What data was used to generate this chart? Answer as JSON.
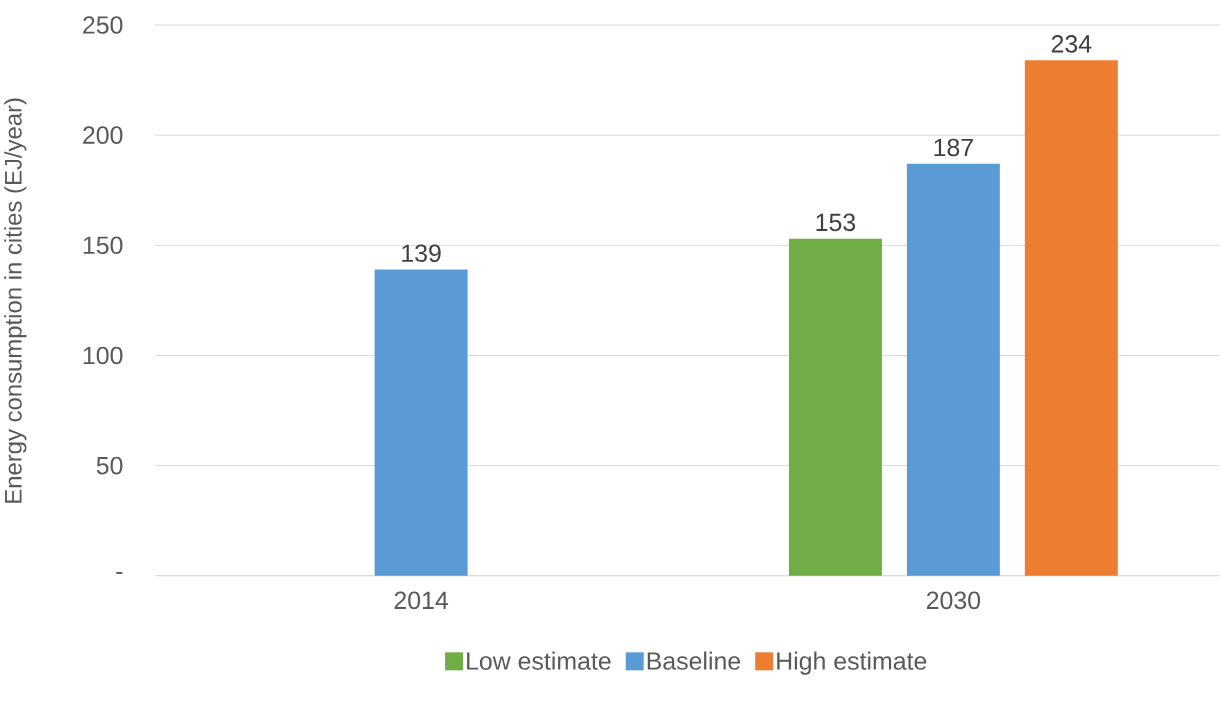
{
  "chart_data": {
    "type": "bar",
    "categories": [
      "2014",
      "2030"
    ],
    "ylabel": "Energy consumption in cities (EJ/year)",
    "series": [
      {
        "name": "Low estimate",
        "color": "#70ad47",
        "values": [
          null,
          153
        ]
      },
      {
        "name": "Baseline",
        "color": "#5b9bd5",
        "values": [
          139,
          187
        ]
      },
      {
        "name": "High estimate",
        "color": "#ed7d31",
        "values": [
          null,
          234
        ]
      }
    ],
    "ylim": [
      0,
      250
    ],
    "yticks": [
      {
        "value": 0,
        "label": "-"
      },
      50,
      100,
      150,
      200,
      250
    ],
    "grid": "y",
    "legend": "bottom",
    "data_labels": true
  }
}
